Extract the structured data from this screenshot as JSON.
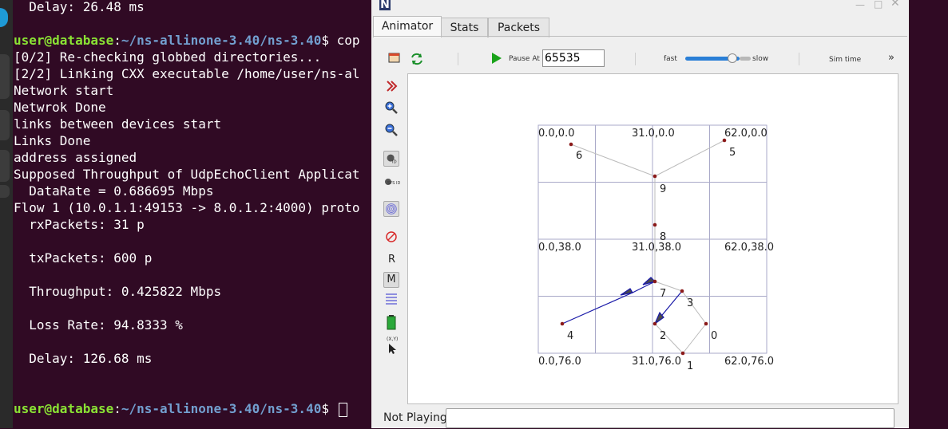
{
  "terminal": {
    "lines": [
      {
        "text": "  Delay: 26.48 ms"
      },
      {
        "text": ""
      },
      {
        "prompt": true,
        "user": "user@database",
        "path": "~/ns-allinone-3.40/ns-3.40",
        "cmd": "$ cop"
      },
      {
        "text": "[0/2] Re-checking globbed directories..."
      },
      {
        "text": "[2/2] Linking CXX executable /home/user/ns-al"
      },
      {
        "text": "Network start"
      },
      {
        "text": "Netwrok Done"
      },
      {
        "text": "links between devices start"
      },
      {
        "text": "Links Done"
      },
      {
        "text": "address assigned"
      },
      {
        "text": "Supposed Throughput of UdpEchoClient Applicat"
      },
      {
        "text": "  DataRate = 0.686695 Mbps"
      },
      {
        "text": "Flow 1 (10.0.1.1:49153 -> 8.0.1.2:4000) proto"
      },
      {
        "text": "  rxPackets: 31 p"
      },
      {
        "text": ""
      },
      {
        "text": "  txPackets: 600 p"
      },
      {
        "text": ""
      },
      {
        "text": "  Throughput: 0.425822 Mbps"
      },
      {
        "text": ""
      },
      {
        "text": "  Loss Rate: 94.8333 %"
      },
      {
        "text": ""
      },
      {
        "text": "  Delay: 126.68 ms"
      },
      {
        "text": ""
      },
      {
        "text": ""
      },
      {
        "prompt": true,
        "user": "user@database",
        "path": "~/ns-allinone-3.40/ns-3.40",
        "cmd": "$ "
      }
    ]
  },
  "netanim": {
    "app_icon_letter": "N",
    "tabs": [
      "Animator",
      "Stats",
      "Packets"
    ],
    "active_tab": "Animator",
    "toolbar": {
      "pause_label": "Pause At",
      "pause_value": "65535",
      "fast_label": "fast",
      "slow_label": "slow",
      "sim_time_label": "Sim time",
      "more_label": "»"
    },
    "sidebar": {
      "sys_id_label": "SYS ID",
      "r_label": "R",
      "m_label": "M",
      "xy_label": "(X,Y)"
    },
    "grid_labels": [
      "0.0,0.0",
      "31.0,0.0",
      "62.0,0.0",
      "0.0,38.0",
      "31.0,38.0",
      "62.0,38.0",
      "0.0,76.0",
      "31.0,76.0",
      "62.0,76.0"
    ],
    "node_labels": [
      "0",
      "1",
      "2",
      "3",
      "4",
      "5",
      "6",
      "7",
      "8",
      "9"
    ],
    "status": {
      "label": "Not Playing",
      "bar_value": ""
    },
    "colors": {
      "node": "#8b1a1a",
      "packet_line": "#1a1aa8",
      "link_line": "#bbbbbb",
      "grid": "#a9a9c8",
      "play": "#1aa31a"
    }
  }
}
